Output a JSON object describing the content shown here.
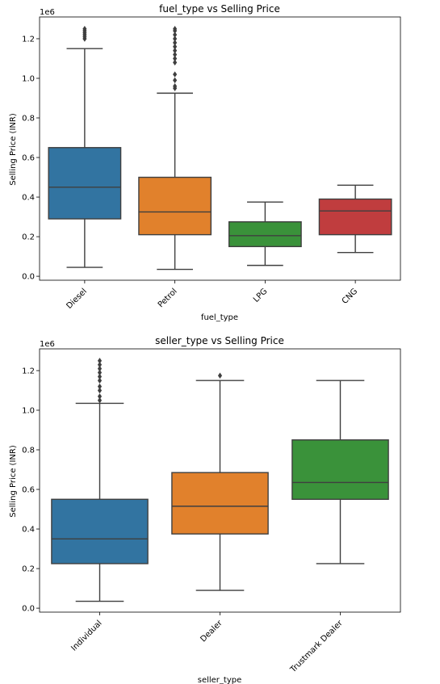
{
  "chart_data": [
    {
      "type": "box",
      "title": "fuel_type vs Selling Price",
      "xlabel": "fuel_type",
      "ylabel": "Selling Price (INR)",
      "offset_label": "1e6",
      "ylim": [
        -0.02,
        1.31
      ],
      "yticks": [
        0.0,
        0.2,
        0.4,
        0.6,
        0.8,
        1.0,
        1.2
      ],
      "ytick_labels": [
        "0.0",
        "0.2",
        "0.4",
        "0.6",
        "0.8",
        "1.0",
        "1.2"
      ],
      "categories": [
        "Diesel",
        "Petrol",
        "LPG",
        "CNG"
      ],
      "boxes": [
        {
          "name": "Diesel",
          "whisker_low": 0.045,
          "q1": 0.29,
          "median": 0.45,
          "q3": 0.65,
          "whisker_high": 1.15,
          "color": "#3274a1",
          "outliers": [
            1.2,
            1.21,
            1.22,
            1.23,
            1.24,
            1.25
          ]
        },
        {
          "name": "Petrol",
          "whisker_low": 0.035,
          "q1": 0.21,
          "median": 0.325,
          "q3": 0.5,
          "whisker_high": 0.925,
          "color": "#e1812c",
          "outliers": [
            0.95,
            0.96,
            0.99,
            1.02,
            1.08,
            1.1,
            1.12,
            1.14,
            1.16,
            1.18,
            1.2,
            1.22,
            1.24,
            1.25
          ]
        },
        {
          "name": "LPG",
          "whisker_low": 0.055,
          "q1": 0.15,
          "median": 0.205,
          "q3": 0.275,
          "whisker_high": 0.375,
          "color": "#3a923a",
          "outliers": []
        },
        {
          "name": "CNG",
          "whisker_low": 0.12,
          "q1": 0.21,
          "median": 0.33,
          "q3": 0.39,
          "whisker_high": 0.46,
          "color": "#c03d3e",
          "outliers": []
        }
      ]
    },
    {
      "type": "box",
      "title": "seller_type vs Selling Price",
      "xlabel": "seller_type",
      "ylabel": "Selling Price (INR)",
      "offset_label": "1e6",
      "ylim": [
        -0.02,
        1.31
      ],
      "yticks": [
        0.0,
        0.2,
        0.4,
        0.6,
        0.8,
        1.0,
        1.2
      ],
      "ytick_labels": [
        "0.0",
        "0.2",
        "0.4",
        "0.6",
        "0.8",
        "1.0",
        "1.2"
      ],
      "categories": [
        "Individual",
        "Dealer",
        "Trustmark Dealer"
      ],
      "boxes": [
        {
          "name": "Individual",
          "whisker_low": 0.035,
          "q1": 0.225,
          "median": 0.35,
          "q3": 0.55,
          "whisker_high": 1.035,
          "color": "#3274a1",
          "outliers": [
            1.05,
            1.07,
            1.1,
            1.12,
            1.15,
            1.17,
            1.19,
            1.21,
            1.23,
            1.25
          ]
        },
        {
          "name": "Dealer",
          "whisker_low": 0.09,
          "q1": 0.375,
          "median": 0.515,
          "q3": 0.685,
          "whisker_high": 1.15,
          "color": "#e1812c",
          "outliers": [
            1.175
          ]
        },
        {
          "name": "Trustmark Dealer",
          "whisker_low": 0.225,
          "q1": 0.55,
          "median": 0.635,
          "q3": 0.85,
          "whisker_high": 1.15,
          "color": "#3a923a",
          "outliers": []
        }
      ]
    }
  ]
}
